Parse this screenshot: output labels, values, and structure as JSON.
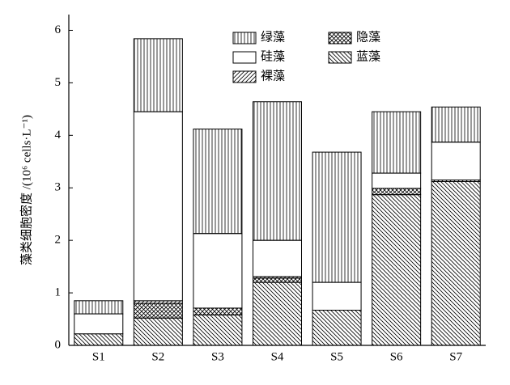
{
  "chart_data": {
    "type": "stacked_bar",
    "ylabel": "藻类细胞密度 /(10⁶ cells·L⁻¹)",
    "categories": [
      "S1",
      "S2",
      "S3",
      "S4",
      "S5",
      "S6",
      "S7"
    ],
    "series": [
      {
        "name": "蓝藻",
        "color": "#000000",
        "pattern": "diag-down",
        "values": [
          0.22,
          0.52,
          0.58,
          1.2,
          0.67,
          2.87,
          3.12
        ]
      },
      {
        "name": "隐藻",
        "color": "#000000",
        "pattern": "crosshatch",
        "values": [
          0,
          0.28,
          0.13,
          0.08,
          0,
          0.12,
          0
        ]
      },
      {
        "name": "裸藻",
        "color": "#000000",
        "pattern": "diag-up",
        "values": [
          0,
          0.05,
          0,
          0.03,
          0,
          0,
          0.03
        ]
      },
      {
        "name": "硅藻",
        "color": "#000000",
        "pattern": "none",
        "values": [
          0.38,
          3.6,
          1.42,
          0.69,
          0.53,
          0.29,
          0.72
        ]
      },
      {
        "name": "绿藻",
        "color": "#000000",
        "pattern": "vertical",
        "values": [
          0.25,
          1.39,
          1.99,
          2.64,
          2.48,
          1.17,
          0.67
        ]
      }
    ],
    "ylim": [
      0,
      6.3
    ],
    "yticks": [
      0,
      1,
      2,
      3,
      4,
      5,
      6
    ]
  }
}
